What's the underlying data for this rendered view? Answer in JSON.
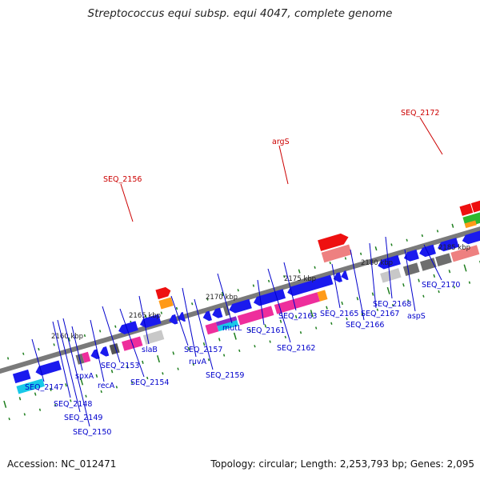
{
  "title": "Streptococcus equi subsp. equi 4047, complete genome",
  "footer": {
    "accession": "Accession: NC_012471",
    "summary": "Topology: circular; Length: 2,253,793 bp; Genes: 2,095"
  },
  "colors": {
    "backbone": "#8c8c8c",
    "blue_gene": "#1a1aee",
    "magenta_gene": "#ee2e9c",
    "grey_gene": "#6e6e6e",
    "light_grey_gene": "#c8c8c8",
    "salmon_gene": "#ee8080",
    "red_gene": "#ee1010",
    "orange_gene": "#ff9a18",
    "green_gene": "#2eb82e",
    "cyan_gene": "#18c8e8",
    "teal_gene": "#10e8a8",
    "tick_green": "#1e7e1e",
    "label_blue": "#0000cc",
    "label_red": "#cc0000"
  },
  "scale_ticks": [
    "2160 kbp",
    "2165 kbp",
    "2170 kbp",
    "2175 kbp",
    "2180 kbp",
    "2185 kbp"
  ],
  "labels_blue": [
    "SEQ_2147",
    "SEQ_2148",
    "SEQ_2149",
    "SEQ_2150",
    "spxA",
    "recA",
    "SEQ_2153",
    "SEQ_2154",
    "slaB",
    "SEQ_2157",
    "ruvA",
    "SEQ_2159",
    "mutL",
    "SEQ_2161",
    "SEQ_2162",
    "SEQ_2163",
    "SEQ_2165",
    "SEQ_2166",
    "SEQ_2167",
    "SEQ_2168",
    "aspS",
    "SEQ_2170"
  ],
  "labels_red": [
    "SEQ_2156",
    "argS",
    "SEQ_2172"
  ]
}
